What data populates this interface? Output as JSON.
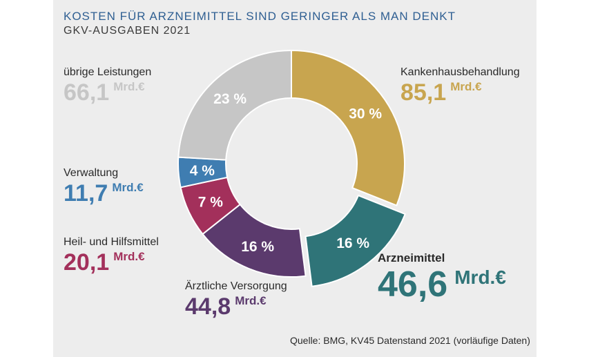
{
  "header": {
    "title": "KOSTEN FÜR ARZNEIMITTEL SIND GERINGER ALS MAN DENKT",
    "subtitle": "GKV-AUSGABEN 2021"
  },
  "source": "Quelle: BMG, KV45 Datenstand 2021 (vorläufige Daten)",
  "chart_data": {
    "type": "pie",
    "donut": true,
    "title": "KOSTEN FÜR ARZNEIMITTEL SIND GERINGER ALS MAN DENKT",
    "subtitle": "GKV-AUSGABEN 2021",
    "unit": "Mrd.€",
    "slices": [
      {
        "name": "Kankenhausbehandlung",
        "value": 85.1,
        "value_label": "85,1",
        "percent_label": "30 %",
        "color": "#c8a54f"
      },
      {
        "name": "Arzneimittel",
        "value": 46.6,
        "value_label": "46,6",
        "percent_label": "16 %",
        "color": "#2f7478"
      },
      {
        "name": "Ärztliche Versorgung",
        "value": 44.8,
        "value_label": "44,8",
        "percent_label": "16 %",
        "color": "#5b3a6d"
      },
      {
        "name": "Heil- und Hilfsmittel",
        "value": 20.1,
        "value_label": "20,1",
        "percent_label": "7 %",
        "color": "#a3305b"
      },
      {
        "name": "Verwaltung",
        "value": 11.7,
        "value_label": "11,7",
        "percent_label": "4 %",
        "color": "#3f7db1"
      },
      {
        "name": "übrige Leistungen",
        "value": 66.1,
        "value_label": "66,1",
        "percent_label": "23 %",
        "color": "#c6c6c6"
      }
    ],
    "highlight": "Arzneimittel"
  }
}
